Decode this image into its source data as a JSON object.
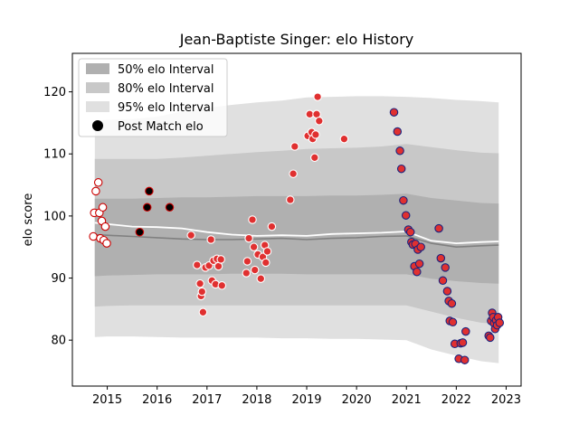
{
  "chart_data": {
    "type": "scatter",
    "title": "Jean-Baptiste Singer: elo History",
    "xlabel": "",
    "ylabel": "elo score",
    "xlim": [
      2014.3,
      2023.3
    ],
    "ylim": [
      72.6,
      126.2
    ],
    "xticks": [
      2015,
      2016,
      2017,
      2018,
      2019,
      2020,
      2021,
      2022,
      2023
    ],
    "xtick_labels": [
      "2015",
      "2016",
      "2017",
      "2018",
      "2019",
      "2020",
      "2021",
      "2022",
      "2023"
    ],
    "yticks": [
      80,
      90,
      100,
      110,
      120
    ],
    "ytick_labels": [
      "80",
      "90",
      "100",
      "110",
      "120"
    ],
    "grid": false,
    "legend_position": "top-left",
    "legend": [
      {
        "label": "50% elo Interval",
        "color": "#b0b0b0"
      },
      {
        "label": "80% elo Interval",
        "color": "#c8c8c8"
      },
      {
        "label": "95% elo Interval",
        "color": "#e0e0e0"
      },
      {
        "label": "Post Match elo",
        "color": "#000000"
      }
    ],
    "bands": {
      "x": [
        2014.75,
        2015.0,
        2015.5,
        2016.0,
        2016.5,
        2017.0,
        2017.5,
        2018.0,
        2018.5,
        2019.0,
        2019.5,
        2020.0,
        2020.5,
        2021.0,
        2021.5,
        2022.0,
        2022.5,
        2022.85
      ],
      "p95": [
        [
          80.5,
          115.3
        ],
        [
          80.6,
          115.5
        ],
        [
          80.6,
          115.6
        ],
        [
          80.5,
          116.0
        ],
        [
          80.4,
          116.8
        ],
        [
          80.4,
          117.4
        ],
        [
          80.4,
          117.9
        ],
        [
          80.4,
          118.3
        ],
        [
          80.3,
          118.6
        ],
        [
          80.3,
          119.1
        ],
        [
          80.2,
          119.2
        ],
        [
          80.2,
          119.3
        ],
        [
          80.1,
          119.3
        ],
        [
          80.0,
          119.2
        ],
        [
          78.5,
          119.0
        ],
        [
          77.5,
          118.7
        ],
        [
          76.6,
          118.5
        ],
        [
          76.3,
          118.3
        ]
      ],
      "p80": [
        [
          85.4,
          109.2
        ],
        [
          85.5,
          109.2
        ],
        [
          85.6,
          109.2
        ],
        [
          85.6,
          109.2
        ],
        [
          85.6,
          109.4
        ],
        [
          85.6,
          109.7
        ],
        [
          85.6,
          110.0
        ],
        [
          85.6,
          110.3
        ],
        [
          85.6,
          110.5
        ],
        [
          85.6,
          110.8
        ],
        [
          85.6,
          110.9
        ],
        [
          85.6,
          111.0
        ],
        [
          85.6,
          111.2
        ],
        [
          85.6,
          111.6
        ],
        [
          84.6,
          111.1
        ],
        [
          83.6,
          110.6
        ],
        [
          82.8,
          110.2
        ],
        [
          82.6,
          110.1
        ]
      ],
      "p50": [
        [
          90.3,
          102.8
        ],
        [
          90.4,
          102.8
        ],
        [
          90.5,
          102.8
        ],
        [
          90.6,
          102.9
        ],
        [
          90.6,
          103.0
        ],
        [
          90.6,
          103.0
        ],
        [
          90.7,
          103.1
        ],
        [
          90.7,
          103.2
        ],
        [
          90.7,
          103.2
        ],
        [
          90.6,
          103.2
        ],
        [
          90.6,
          103.3
        ],
        [
          90.6,
          103.3
        ],
        [
          90.6,
          103.4
        ],
        [
          90.6,
          103.6
        ],
        [
          89.9,
          102.9
        ],
        [
          89.5,
          102.5
        ],
        [
          89.2,
          102.1
        ],
        [
          89.1,
          102.0
        ]
      ]
    },
    "median_line": {
      "x": [
        2014.75,
        2015.0,
        2015.5,
        2016.0,
        2016.5,
        2017.0,
        2017.5,
        2018.0,
        2018.5,
        2019.0,
        2019.5,
        2020.0,
        2020.5,
        2021.0,
        2021.5,
        2022.0,
        2022.5,
        2022.85
      ],
      "y": [
        97.0,
        96.9,
        96.7,
        96.5,
        96.3,
        96.2,
        96.2,
        96.3,
        96.4,
        96.2,
        96.4,
        96.5,
        96.7,
        96.8,
        95.6,
        95.0,
        95.2,
        95.3
      ]
    },
    "mean_line": {
      "x": [
        2014.75,
        2015.0,
        2015.5,
        2016.0,
        2016.5,
        2017.0,
        2017.5,
        2018.0,
        2018.5,
        2019.0,
        2019.5,
        2020.0,
        2020.5,
        2021.0,
        2021.5,
        2022.0,
        2022.5,
        2022.85
      ],
      "y": [
        98.9,
        98.7,
        98.3,
        98.2,
        98.0,
        97.4,
        97.0,
        96.8,
        96.9,
        96.8,
        97.1,
        97.2,
        97.3,
        97.5,
        96.0,
        95.6,
        95.8,
        95.9
      ]
    },
    "series": [
      {
        "points": [
          [
            2014.72,
            96.7
          ],
          [
            2014.74,
            100.5
          ],
          [
            2014.77,
            104.0
          ],
          [
            2014.82,
            105.4
          ],
          [
            2014.84,
            100.5
          ],
          [
            2014.86,
            96.4
          ],
          [
            2014.89,
            99.2
          ],
          [
            2014.91,
            101.4
          ],
          [
            2014.93,
            96.1
          ],
          [
            2014.96,
            98.3
          ],
          [
            2014.99,
            95.6
          ]
        ],
        "fill": "#ffffff",
        "stroke": "#cc0000"
      },
      {
        "points": [
          [
            2015.65,
            97.4
          ],
          [
            2015.8,
            101.4
          ],
          [
            2015.84,
            104.0
          ],
          [
            2016.25,
            101.4
          ]
        ],
        "fill": "#000000",
        "stroke": "#cc0000"
      },
      {
        "points": [
          [
            2016.68,
            96.9
          ],
          [
            2016.8,
            92.1
          ],
          [
            2016.86,
            89.1
          ],
          [
            2016.88,
            87.1
          ],
          [
            2016.9,
            87.8
          ],
          [
            2016.92,
            84.5
          ],
          [
            2016.97,
            91.7
          ],
          [
            2017.04,
            92.0
          ],
          [
            2017.08,
            96.2
          ],
          [
            2017.1,
            89.6
          ],
          [
            2017.13,
            92.8
          ],
          [
            2017.17,
            89.0
          ],
          [
            2017.2,
            93.1
          ],
          [
            2017.23,
            91.9
          ],
          [
            2017.28,
            93.0
          ],
          [
            2017.3,
            88.8
          ],
          [
            2017.79,
            90.8
          ],
          [
            2017.81,
            92.7
          ],
          [
            2017.84,
            96.4
          ],
          [
            2017.91,
            99.4
          ],
          [
            2017.94,
            95.0
          ],
          [
            2017.96,
            91.3
          ],
          [
            2018.02,
            93.8
          ],
          [
            2018.08,
            89.9
          ],
          [
            2018.12,
            93.4
          ],
          [
            2018.16,
            95.3
          ],
          [
            2018.18,
            92.5
          ],
          [
            2018.21,
            94.3
          ],
          [
            2018.3,
            98.3
          ],
          [
            2018.67,
            102.6
          ],
          [
            2018.73,
            106.8
          ],
          [
            2018.76,
            111.2
          ],
          [
            2019.02,
            112.9
          ],
          [
            2019.06,
            116.4
          ],
          [
            2019.1,
            113.5
          ],
          [
            2019.12,
            112.4
          ],
          [
            2019.16,
            109.4
          ],
          [
            2019.18,
            113.1
          ],
          [
            2019.2,
            116.4
          ],
          [
            2019.22,
            119.2
          ],
          [
            2019.25,
            115.3
          ],
          [
            2019.75,
            112.4
          ]
        ],
        "fill": "#e03030",
        "stroke": "#ffffff"
      },
      {
        "points": [
          [
            2020.75,
            116.7
          ],
          [
            2020.82,
            113.6
          ],
          [
            2020.87,
            110.5
          ],
          [
            2020.9,
            107.6
          ],
          [
            2020.94,
            102.5
          ],
          [
            2020.99,
            100.1
          ],
          [
            2021.04,
            97.8
          ],
          [
            2021.08,
            97.4
          ],
          [
            2021.1,
            95.8
          ],
          [
            2021.13,
            95.4
          ],
          [
            2021.16,
            91.9
          ],
          [
            2021.18,
            95.5
          ],
          [
            2021.21,
            91.0
          ],
          [
            2021.23,
            94.6
          ],
          [
            2021.26,
            92.3
          ],
          [
            2021.29,
            95.0
          ],
          [
            2021.65,
            98.0
          ],
          [
            2021.69,
            93.2
          ],
          [
            2021.73,
            89.6
          ],
          [
            2021.78,
            91.7
          ],
          [
            2021.82,
            87.9
          ],
          [
            2021.85,
            86.3
          ],
          [
            2021.87,
            83.1
          ],
          [
            2021.91,
            85.9
          ],
          [
            2021.93,
            82.9
          ],
          [
            2021.97,
            79.4
          ],
          [
            2022.05,
            77.0
          ],
          [
            2022.09,
            79.5
          ],
          [
            2022.13,
            79.6
          ],
          [
            2022.17,
            76.8
          ],
          [
            2022.19,
            81.4
          ],
          [
            2022.65,
            80.7
          ],
          [
            2022.68,
            80.4
          ],
          [
            2022.7,
            83.1
          ],
          [
            2022.72,
            84.4
          ],
          [
            2022.74,
            83.7
          ],
          [
            2022.76,
            82.7
          ],
          [
            2022.78,
            81.8
          ],
          [
            2022.8,
            83.2
          ],
          [
            2022.82,
            82.4
          ],
          [
            2022.84,
            83.7
          ],
          [
            2022.87,
            82.8
          ]
        ],
        "fill": "#e03030",
        "stroke": "#1a237e"
      }
    ]
  }
}
